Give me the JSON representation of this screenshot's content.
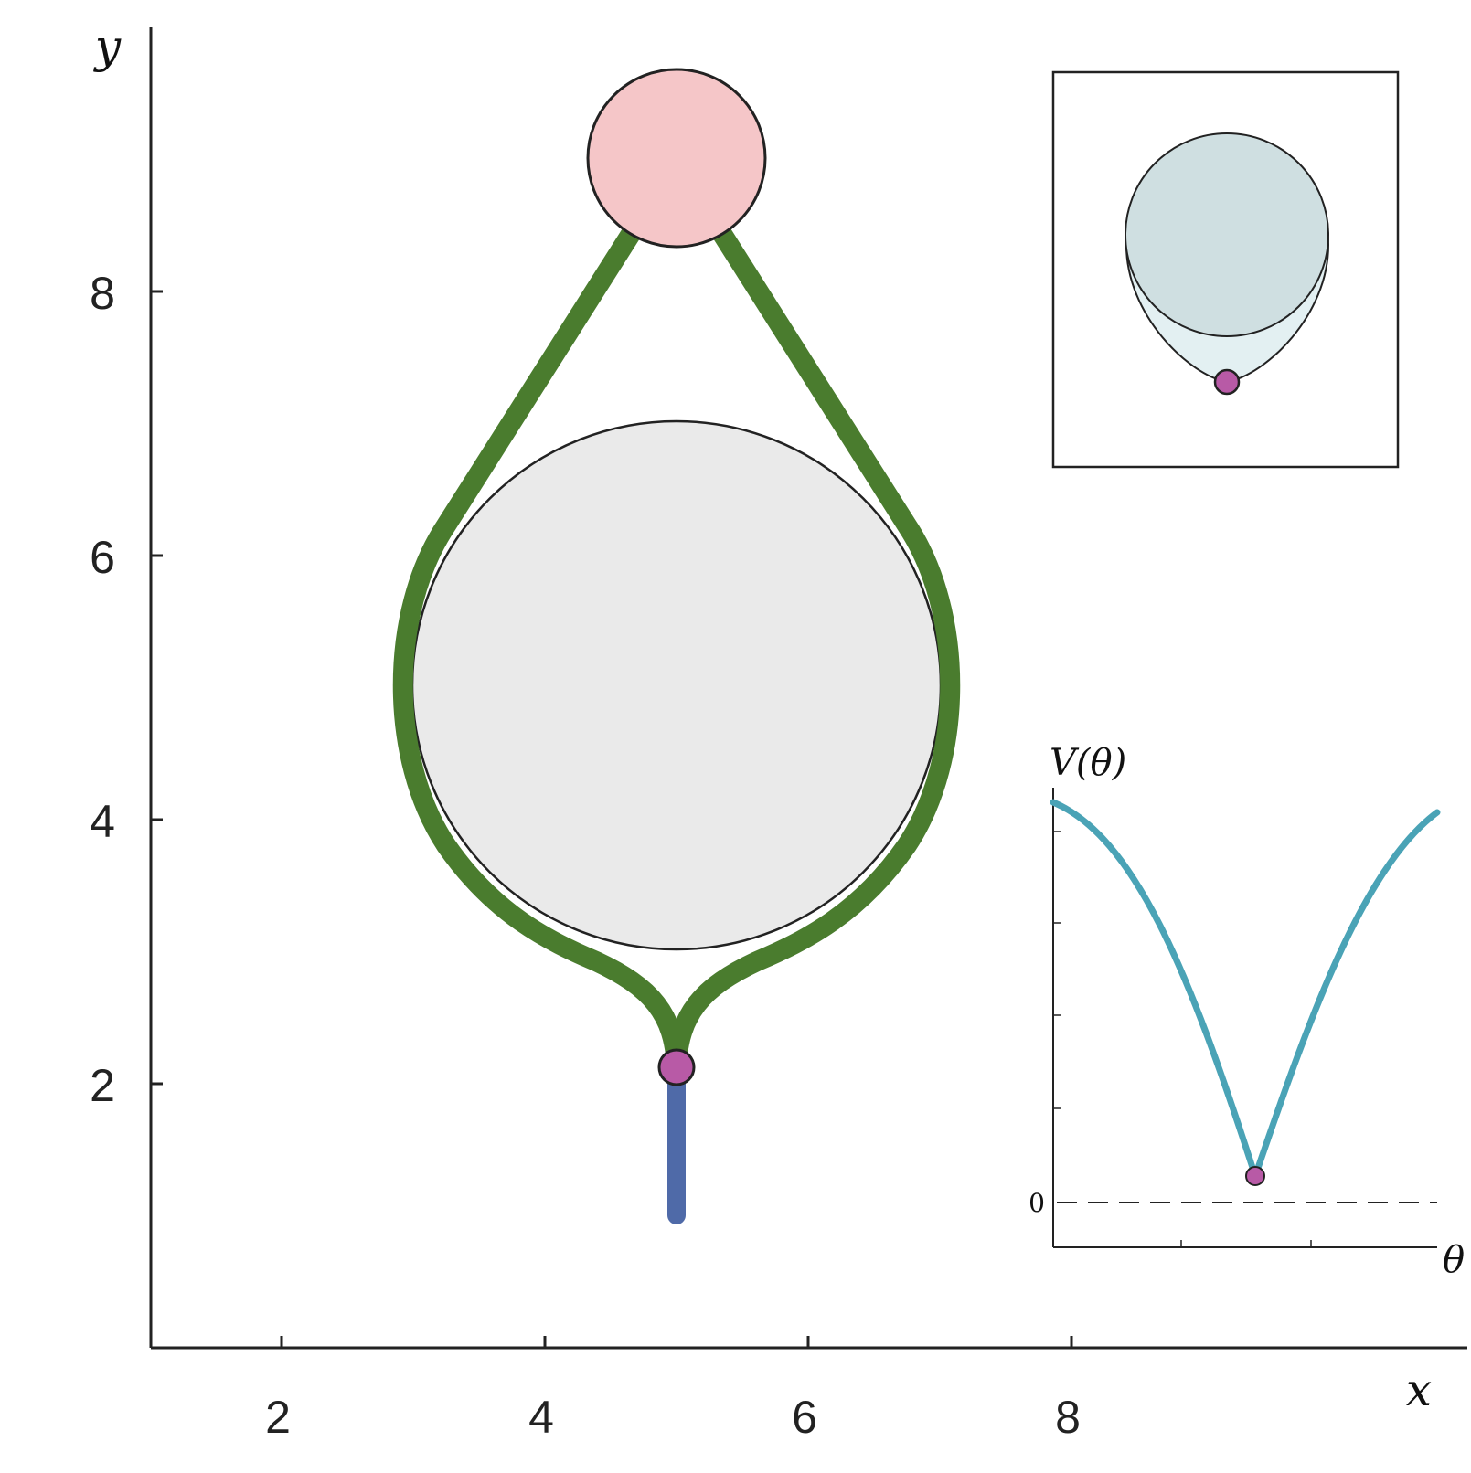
{
  "axes": {
    "x_label": "x",
    "y_label": "y",
    "x_ticks": [
      "2",
      "4",
      "6",
      "8"
    ],
    "y_ticks": [
      "2",
      "4",
      "6",
      "8"
    ]
  },
  "potential_inset": {
    "y_label": "V(θ)",
    "x_label": "θ",
    "zero_label": "0"
  },
  "colors": {
    "top_disk": "#f5c6c8",
    "large_disk": "#eaeaea",
    "green_curve": "#4a7c2e",
    "blue_segment": "#4f6aa8",
    "pink_dot": "#b85aa6",
    "potential_curve": "#4aa3b6",
    "inset_disk": "#cfdfe1",
    "inset_teardrop": "#e3f0f2"
  }
}
